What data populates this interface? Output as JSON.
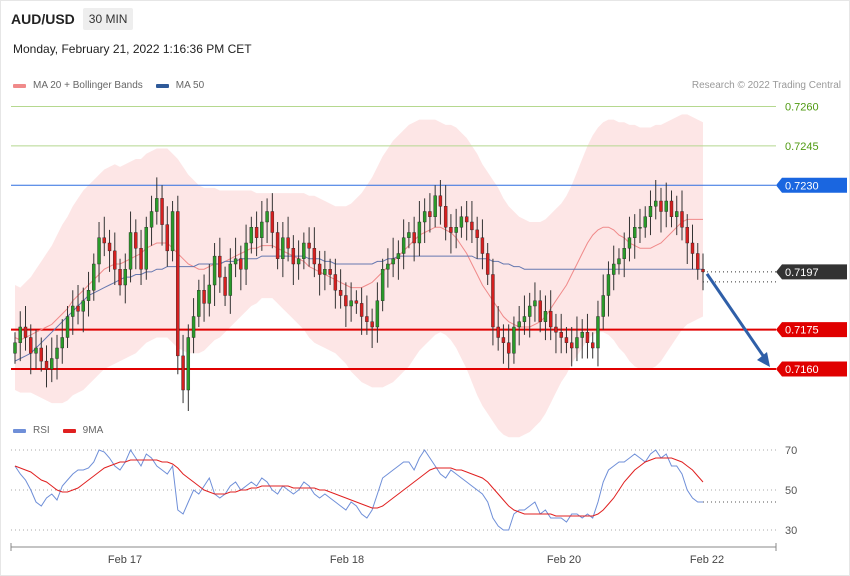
{
  "header": {
    "symbol": "AUD/USD",
    "interval": "30 MIN",
    "datetime": "Monday, February 21, 2022 1:16:36 PM CET"
  },
  "legend": {
    "ma20_label": "MA 20 + Bollinger Bands",
    "ma20_color": "#f08a8a",
    "ma50_label": "MA 50",
    "ma50_color": "#2f5a99"
  },
  "copyright": "Research © 2022 Trading Central",
  "rsi_legend": {
    "rsi_label": "RSI",
    "rsi_color": "#6f8fd8",
    "ma_label": "9MA",
    "ma_color": "#e02020"
  },
  "chart_data": [
    {
      "type": "candlestick",
      "title": "AUD/USD",
      "ylim": [
        0.7132,
        0.7278
      ],
      "x_tick_labels": [
        "Feb 17",
        "Feb 18",
        "Feb 20",
        "Feb 22"
      ],
      "levels": [
        {
          "value": 0.726,
          "label": "0.7260",
          "kind": "target",
          "color": "#b5d88f",
          "label_color": "#4f9a12"
        },
        {
          "value": 0.7245,
          "label": "0.7245",
          "kind": "target",
          "color": "#b5d88f",
          "label_color": "#4f9a12"
        },
        {
          "value": 0.723,
          "label": "0.7230",
          "kind": "pivot",
          "color": "#2f6fe0",
          "label_color": "#ffffff",
          "tag_color": "#1a66e0"
        },
        {
          "value": 0.7197,
          "label": "0.7197",
          "kind": "current",
          "color": "#333333",
          "label_color": "#ffffff",
          "tag_color": "#333333"
        },
        {
          "value": 0.7175,
          "label": "0.7175",
          "kind": "support",
          "color": "#e00000",
          "label_color": "#ffffff",
          "tag_color": "#e00000"
        },
        {
          "value": 0.716,
          "label": "0.7160",
          "kind": "support",
          "color": "#e00000",
          "label_color": "#ffffff",
          "tag_color": "#e00000"
        }
      ],
      "close": [
        0.717,
        0.7176,
        0.7172,
        0.7166,
        0.7168,
        0.7163,
        0.716,
        0.7164,
        0.7168,
        0.7172,
        0.718,
        0.7184,
        0.7182,
        0.7186,
        0.719,
        0.72,
        0.721,
        0.7208,
        0.7205,
        0.7198,
        0.7192,
        0.7198,
        0.7212,
        0.7206,
        0.7198,
        0.7214,
        0.722,
        0.7225,
        0.7215,
        0.7205,
        0.722,
        0.7165,
        0.7152,
        0.7172,
        0.718,
        0.719,
        0.7185,
        0.7192,
        0.7203,
        0.7195,
        0.7188,
        0.72,
        0.7202,
        0.7198,
        0.7208,
        0.7214,
        0.721,
        0.7216,
        0.722,
        0.7212,
        0.7202,
        0.721,
        0.7206,
        0.72,
        0.7202,
        0.7208,
        0.7206,
        0.72,
        0.7196,
        0.7198,
        0.7196,
        0.719,
        0.7188,
        0.7184,
        0.7186,
        0.7185,
        0.718,
        0.7178,
        0.7176,
        0.7186,
        0.7198,
        0.72,
        0.7202,
        0.7204,
        0.721,
        0.7212,
        0.7208,
        0.7216,
        0.722,
        0.7218,
        0.7226,
        0.7222,
        0.7214,
        0.7212,
        0.7214,
        0.7218,
        0.7216,
        0.7213,
        0.721,
        0.7204,
        0.7196,
        0.7176,
        0.7172,
        0.717,
        0.7166,
        0.7176,
        0.7178,
        0.718,
        0.7184,
        0.7186,
        0.7178,
        0.7182,
        0.7176,
        0.7174,
        0.7172,
        0.717,
        0.7168,
        0.7172,
        0.7174,
        0.717,
        0.7168,
        0.718,
        0.7188,
        0.7196,
        0.72,
        0.7202,
        0.7206,
        0.721,
        0.7214,
        0.7214,
        0.7218,
        0.7222,
        0.7224,
        0.722,
        0.7224,
        0.7218,
        0.722,
        0.7214,
        0.7208,
        0.7204,
        0.7198,
        0.7197
      ],
      "ma20": [
        0.7172,
        0.7171,
        0.7172,
        0.7173,
        0.7174,
        0.7175,
        0.7176,
        0.7177,
        0.7179,
        0.7181,
        0.7183,
        0.7186,
        0.7188,
        0.719,
        0.7192,
        0.7194,
        0.7196,
        0.7198,
        0.7199,
        0.72,
        0.72,
        0.7201,
        0.7202,
        0.7203,
        0.7204,
        0.7206,
        0.7207,
        0.7208,
        0.7208,
        0.7208,
        0.7206,
        0.7204,
        0.7202,
        0.72,
        0.7199,
        0.7198,
        0.7198,
        0.7199,
        0.72,
        0.72,
        0.7201,
        0.7202,
        0.7203,
        0.7204,
        0.7205,
        0.7206,
        0.7206,
        0.7207,
        0.7207,
        0.7207,
        0.7206,
        0.7205,
        0.7204,
        0.7203,
        0.7202,
        0.7201,
        0.7199,
        0.7198,
        0.7197,
        0.7196,
        0.7195,
        0.7194,
        0.7193,
        0.7192,
        0.7191,
        0.7191,
        0.7191,
        0.7192,
        0.7193,
        0.7195,
        0.7197,
        0.7199,
        0.7201,
        0.7203,
        0.7205,
        0.7207,
        0.7209,
        0.7211,
        0.7212,
        0.7213,
        0.7214,
        0.7214,
        0.7213,
        0.7212,
        0.721,
        0.7207,
        0.7204,
        0.72,
        0.7196,
        0.7192,
        0.7189,
        0.7186,
        0.7183,
        0.718,
        0.7178,
        0.7177,
        0.7176,
        0.7176,
        0.7176,
        0.7177,
        0.7178,
        0.718,
        0.7183,
        0.7186,
        0.7189,
        0.7192,
        0.7196,
        0.72,
        0.7204,
        0.7208,
        0.7211,
        0.7213,
        0.7214,
        0.7214,
        0.7213,
        0.7211,
        0.721,
        0.7208,
        0.7207,
        0.7206,
        0.7206,
        0.7206,
        0.7207,
        0.7208,
        0.721,
        0.7212,
        0.7214,
        0.7216,
        0.7217,
        0.7217,
        0.7217,
        0.7217
      ],
      "bb_width": [
        0.002,
        0.002,
        0.0021,
        0.0022,
        0.0024,
        0.0026,
        0.0028,
        0.003,
        0.0032,
        0.0034,
        0.0035,
        0.0036,
        0.0037,
        0.0038,
        0.0038,
        0.0038,
        0.0038,
        0.0038,
        0.0038,
        0.0038,
        0.0037,
        0.0037,
        0.0037,
        0.0037,
        0.0036,
        0.0036,
        0.0036,
        0.0036,
        0.0036,
        0.0036,
        0.0036,
        0.0036,
        0.0035,
        0.0034,
        0.0033,
        0.0032,
        0.0031,
        0.003,
        0.0029,
        0.0028,
        0.0027,
        0.0026,
        0.0025,
        0.0024,
        0.0023,
        0.0022,
        0.0021,
        0.002,
        0.002,
        0.002,
        0.0021,
        0.0022,
        0.0023,
        0.0024,
        0.0025,
        0.0026,
        0.0027,
        0.0028,
        0.0028,
        0.0028,
        0.0028,
        0.0028,
        0.0029,
        0.003,
        0.0032,
        0.0034,
        0.0036,
        0.0038,
        0.004,
        0.0042,
        0.0044,
        0.0045,
        0.0046,
        0.0046,
        0.0046,
        0.0046,
        0.0045,
        0.0044,
        0.0043,
        0.0042,
        0.0041,
        0.004,
        0.004,
        0.0041,
        0.0042,
        0.0043,
        0.0044,
        0.0045,
        0.0046,
        0.0046,
        0.0046,
        0.0046,
        0.0046,
        0.0045,
        0.0044,
        0.0043,
        0.0042,
        0.0041,
        0.004,
        0.0039,
        0.0038,
        0.0037,
        0.0036,
        0.0035,
        0.0034,
        0.0034,
        0.0034,
        0.0035,
        0.0036,
        0.0037,
        0.0038,
        0.0039,
        0.004,
        0.0041,
        0.0042,
        0.0043,
        0.0044,
        0.0045,
        0.0046,
        0.0046,
        0.0046,
        0.0046,
        0.0046,
        0.0045,
        0.0044,
        0.0043,
        0.0042,
        0.0041,
        0.004,
        0.0039,
        0.0038,
        0.0037,
        0.0036,
        0.0035
      ],
      "ma50": [
        0.7163,
        0.7164,
        0.7165,
        0.7166,
        0.7168,
        0.717,
        0.7172,
        0.7174,
        0.7176,
        0.7178,
        0.718,
        0.7182,
        0.7184,
        0.7186,
        0.7188,
        0.7189,
        0.719,
        0.7191,
        0.7192,
        0.7193,
        0.7194,
        0.7195,
        0.7195,
        0.7196,
        0.7196,
        0.7197,
        0.7197,
        0.7198,
        0.7198,
        0.7199,
        0.7199,
        0.7199,
        0.7199,
        0.7199,
        0.7199,
        0.72,
        0.72,
        0.72,
        0.72,
        0.72,
        0.7201,
        0.7201,
        0.7201,
        0.7202,
        0.7202,
        0.7202,
        0.7202,
        0.7203,
        0.7203,
        0.7203,
        0.7203,
        0.7203,
        0.7203,
        0.7203,
        0.7203,
        0.7203,
        0.7202,
        0.7202,
        0.7202,
        0.7201,
        0.7201,
        0.72,
        0.72,
        0.72,
        0.72,
        0.72,
        0.72,
        0.72,
        0.72,
        0.7201,
        0.7201,
        0.7202,
        0.7202,
        0.7203,
        0.7203,
        0.7203,
        0.7203,
        0.7203,
        0.7203,
        0.7203,
        0.7203,
        0.7203,
        0.7203,
        0.7203,
        0.7203,
        0.7203,
        0.7203,
        0.7203,
        0.7202,
        0.7202,
        0.7202,
        0.7201,
        0.7201,
        0.72,
        0.72,
        0.7199,
        0.7199,
        0.7198,
        0.7198,
        0.7198,
        0.7198,
        0.7198,
        0.7198,
        0.7198,
        0.7198,
        0.7198,
        0.7198,
        0.7198,
        0.7198,
        0.7198,
        0.7198,
        0.7198,
        0.7198,
        0.7198,
        0.7198,
        0.7198,
        0.7198,
        0.7198,
        0.7198,
        0.7198,
        0.7198,
        0.7198,
        0.7198,
        0.7198,
        0.7198,
        0.7198,
        0.7198,
        0.7198,
        0.7198,
        0.7198,
        0.7198,
        0.7198
      ]
    },
    {
      "type": "line",
      "series_names": [
        "RSI",
        "9MA"
      ],
      "ylim": [
        25,
        75
      ],
      "y_ticks": [
        30,
        50,
        70
      ],
      "rsi": [
        62,
        58,
        55,
        50,
        44,
        42,
        46,
        48,
        45,
        52,
        55,
        58,
        60,
        60,
        61,
        64,
        70,
        69,
        66,
        62,
        60,
        64,
        70,
        66,
        62,
        68,
        66,
        62,
        60,
        58,
        62,
        40,
        38,
        44,
        50,
        48,
        52,
        56,
        48,
        46,
        48,
        52,
        54,
        50,
        52,
        54,
        52,
        56,
        54,
        50,
        48,
        52,
        50,
        48,
        50,
        54,
        52,
        48,
        46,
        48,
        46,
        44,
        42,
        40,
        44,
        42,
        38,
        36,
        40,
        48,
        56,
        58,
        60,
        62,
        64,
        64,
        60,
        66,
        70,
        66,
        62,
        58,
        56,
        60,
        58,
        56,
        54,
        52,
        50,
        48,
        44,
        36,
        32,
        30,
        30,
        38,
        40,
        40,
        42,
        44,
        38,
        40,
        36,
        36,
        36,
        34,
        38,
        38,
        36,
        38,
        36,
        44,
        54,
        60,
        62,
        64,
        64,
        66,
        68,
        66,
        64,
        68,
        70,
        66,
        68,
        62,
        62,
        58,
        50,
        46,
        44,
        44
      ],
      "ma9": [
        62,
        61,
        60,
        59,
        57,
        55,
        54,
        52,
        50,
        49,
        49,
        50,
        51,
        53,
        55,
        57,
        59,
        61,
        62,
        63,
        64,
        64,
        65,
        65,
        65,
        65,
        65,
        65,
        64,
        64,
        63,
        61,
        58,
        56,
        54,
        52,
        50,
        49,
        48,
        48,
        48,
        49,
        49,
        50,
        50,
        51,
        51,
        52,
        52,
        52,
        52,
        52,
        52,
        51,
        51,
        51,
        51,
        51,
        50,
        50,
        49,
        48,
        47,
        46,
        45,
        44,
        43,
        42,
        41,
        41,
        42,
        44,
        46,
        48,
        50,
        52,
        54,
        56,
        58,
        60,
        61,
        61,
        61,
        61,
        60,
        60,
        59,
        58,
        57,
        56,
        54,
        51,
        48,
        45,
        42,
        40,
        39,
        38,
        38,
        38,
        38,
        38,
        38,
        37,
        37,
        37,
        37,
        37,
        37,
        37,
        37,
        38,
        40,
        43,
        46,
        50,
        54,
        57,
        60,
        62,
        64,
        65,
        66,
        66,
        66,
        66,
        65,
        64,
        62,
        60,
        57,
        54
      ]
    }
  ]
}
